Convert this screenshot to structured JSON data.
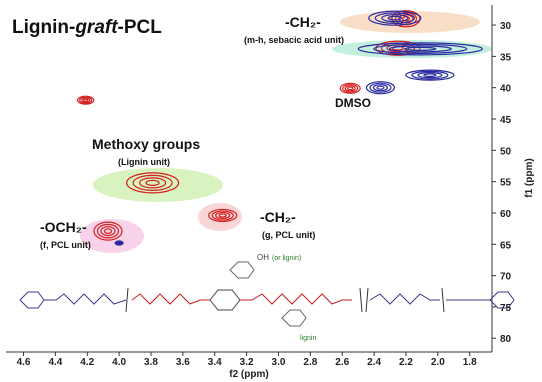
{
  "chart_data": {
    "type": "contour",
    "title_parts": [
      "Lignin-",
      "graft",
      "-PCL"
    ],
    "x_label": "f2 (ppm)",
    "y_label": "f1 (ppm)",
    "xlim": [
      4.71,
      1.66
    ],
    "ylim": [
      26.8,
      82.2
    ],
    "xticks": [
      4.6,
      4.4,
      4.2,
      {
        "value": 4.0,
        "label": "4.0"
      },
      3.8,
      3.6,
      3.4,
      3.2,
      {
        "value": 3.0,
        "label": "3.0"
      },
      2.8,
      2.6,
      2.4,
      2.2,
      {
        "value": 2.0,
        "label": "2.0"
      },
      1.8
    ],
    "yticks": [
      30,
      35,
      40,
      45,
      50,
      55,
      60,
      65,
      70,
      75,
      80
    ],
    "series": [
      {
        "color": "#d42020",
        "x": [
          4.21,
          4.07,
          3.79,
          3.35,
          2.55,
          2.25,
          2.2
        ],
        "y": [
          42.0,
          62.9,
          55.2,
          60.4,
          40.1,
          33.7,
          29.0
        ]
      },
      {
        "color": "#2a2aa0",
        "x": [
          4.0,
          2.36,
          2.11,
          2.27,
          2.05
        ],
        "y": [
          64.8,
          40.0,
          33.8,
          28.9,
          38.0
        ]
      }
    ],
    "annotations": {
      "ch2_sebacic": "-CH₂-",
      "ch2_sebacic_sub": "(m-h, sebacic acid unit)",
      "dmso": "DMSO",
      "methoxy": "Methoxy groups",
      "methoxy_sub": "(Lignin unit)",
      "och2": "-OCH₂-",
      "och2_sub": "(f, PCL unit)",
      "ch2_g": "-CH₂-",
      "ch2_g_sub": "(g, PCL unit)",
      "oh": "OH",
      "or_lignin": "(or lignin)",
      "lignin": "lignin"
    }
  }
}
